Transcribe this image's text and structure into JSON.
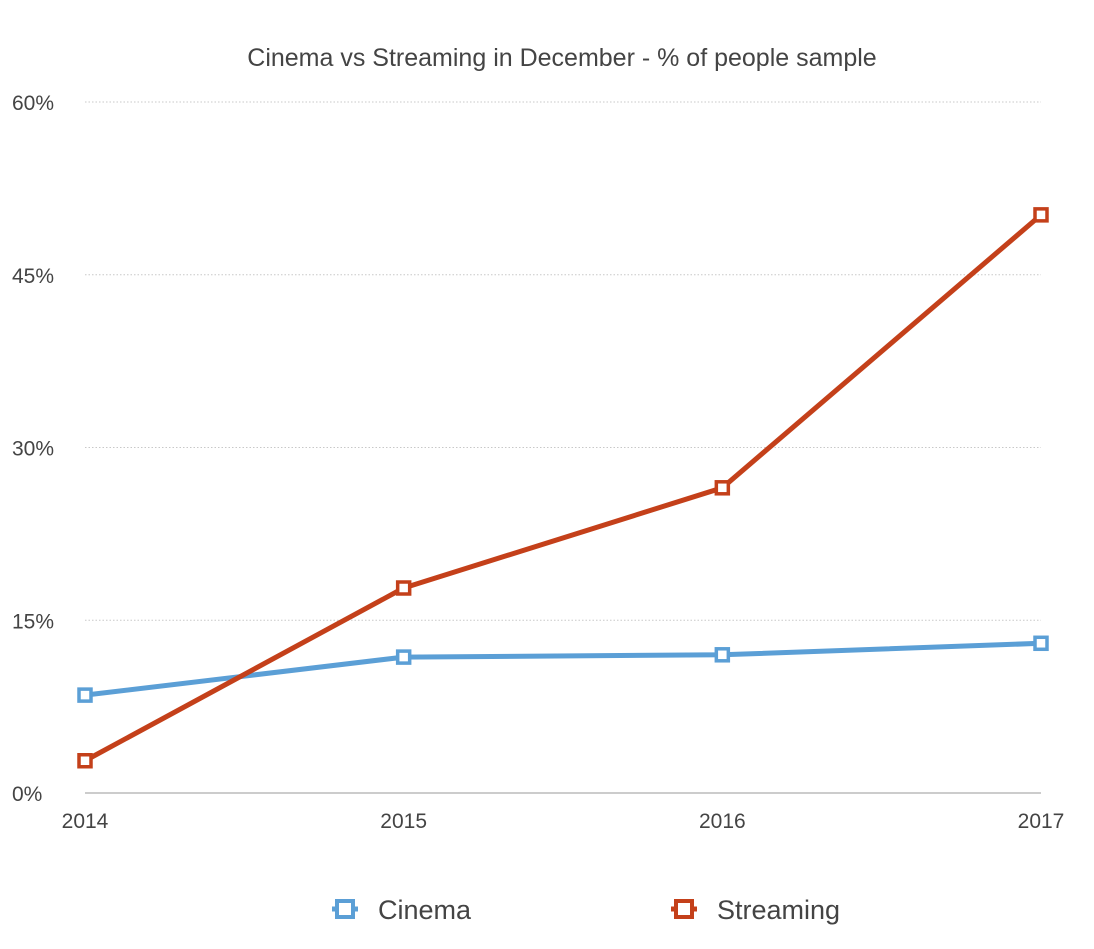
{
  "chart_data": {
    "type": "line",
    "title": "Cinema vs Streaming in December - % of people sample",
    "xlabel": "",
    "ylabel": "",
    "categories": [
      "2014",
      "2015",
      "2016",
      "2017"
    ],
    "y_ticks": [
      "0%",
      "15%",
      "30%",
      "45%",
      "60%"
    ],
    "ylim": [
      0,
      60
    ],
    "grid": true,
    "legend_position": "bottom",
    "series": [
      {
        "name": "Cinema",
        "color": "#5b9fd6",
        "values": [
          8.5,
          11.8,
          12,
          13
        ]
      },
      {
        "name": "Streaming",
        "color": "#c4401a",
        "values": [
          2.8,
          17.8,
          26.5,
          50.2
        ]
      }
    ]
  }
}
